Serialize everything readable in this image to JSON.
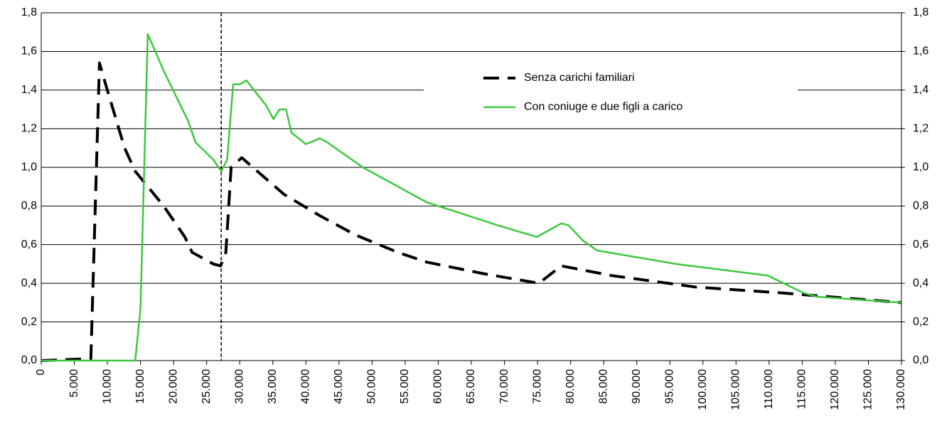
{
  "chart_data": {
    "type": "line",
    "x": null,
    "xlim": [
      0,
      130000
    ],
    "xticks": [
      {
        "value": 0,
        "label": "0"
      },
      {
        "value": 5000,
        "label": "5.000"
      },
      {
        "value": 10000,
        "label": "10.000"
      },
      {
        "value": 15000,
        "label": "15.000"
      },
      {
        "value": 20000,
        "label": "20.000"
      },
      {
        "value": 25000,
        "label": "25.000"
      },
      {
        "value": 30000,
        "label": "30.000"
      },
      {
        "value": 35000,
        "label": "35.000"
      },
      {
        "value": 40000,
        "label": "40.000"
      },
      {
        "value": 45000,
        "label": "45.000"
      },
      {
        "value": 50000,
        "label": "50.000"
      },
      {
        "value": 55000,
        "label": "55.000"
      },
      {
        "value": 60000,
        "label": "60.000"
      },
      {
        "value": 65000,
        "label": "65.000"
      },
      {
        "value": 70000,
        "label": "70.000"
      },
      {
        "value": 75000,
        "label": "75.000"
      },
      {
        "value": 80000,
        "label": "80.000"
      },
      {
        "value": 85000,
        "label": "85.000"
      },
      {
        "value": 90000,
        "label": "90.000"
      },
      {
        "value": 95000,
        "label": "95.000"
      },
      {
        "value": 100000,
        "label": "100.000"
      },
      {
        "value": 105000,
        "label": "105.000"
      },
      {
        "value": 110000,
        "label": "110.000"
      },
      {
        "value": 115000,
        "label": "115.000"
      },
      {
        "value": 120000,
        "label": "120.000"
      },
      {
        "value": 125000,
        "label": "125.000"
      },
      {
        "value": 130000,
        "label": "130.000"
      }
    ],
    "ylim": [
      0,
      1.8
    ],
    "yticks": [
      {
        "value": 0,
        "label": "0,0"
      },
      {
        "value": 0.2,
        "label": "0,2"
      },
      {
        "value": 0.4,
        "label": "0,4"
      },
      {
        "value": 0.6,
        "label": "0,6"
      },
      {
        "value": 0.8,
        "label": "0,8"
      },
      {
        "value": 1.0,
        "label": "1,0"
      },
      {
        "value": 1.2,
        "label": "1,2"
      },
      {
        "value": 1.4,
        "label": "1,4"
      },
      {
        "value": 1.6,
        "label": "1,6"
      },
      {
        "value": 1.8,
        "label": "1,8"
      }
    ],
    "y2lim": [
      0,
      1.8
    ],
    "y2ticks": [
      {
        "value": 0,
        "label": "0,0"
      },
      {
        "value": 0.2,
        "label": "0,2"
      },
      {
        "value": 0.4,
        "label": "0,4"
      },
      {
        "value": 0.6,
        "label": "0,6"
      },
      {
        "value": 0.8,
        "label": "0,8"
      },
      {
        "value": 1.0,
        "label": "1,0"
      },
      {
        "value": 1.2,
        "label": "1,2"
      },
      {
        "value": 1.4,
        "label": "1,4"
      },
      {
        "value": 1.6,
        "label": "1,6"
      },
      {
        "value": 1.8,
        "label": "1,8"
      }
    ],
    "grid": true,
    "reference_line_x": 27200,
    "series": [
      {
        "name": "Senza carichi familiari",
        "color": "#000000",
        "dash": true,
        "x": [
          0,
          7500,
          8800,
          9900,
          12600,
          14200,
          18500,
          21700,
          22800,
          26000,
          27100,
          27900,
          28700,
          30300,
          36700,
          42100,
          47500,
          53900,
          58200,
          66800,
          75200,
          78600,
          86200,
          99000,
          112000,
          130000
        ],
        "values": [
          0,
          0.01,
          1.54,
          1.41,
          1.1,
          0.98,
          0.8,
          0.64,
          0.56,
          0.5,
          0.49,
          0.56,
          1.0,
          1.05,
          0.86,
          0.75,
          0.65,
          0.56,
          0.51,
          0.45,
          0.4,
          0.49,
          0.44,
          0.38,
          0.35,
          0.3
        ]
      },
      {
        "name": "Con coniuge e due figli a carico",
        "color": "#3cc83c",
        "dash": false,
        "x": [
          0,
          14200,
          15000,
          16100,
          18500,
          22200,
          23300,
          26000,
          27200,
          28100,
          29000,
          30000,
          31000,
          34000,
          35100,
          36000,
          37000,
          37800,
          40000,
          42100,
          43200,
          48600,
          55000,
          58200,
          69000,
          74900,
          78600,
          79700,
          81900,
          84000,
          95900,
          109800,
          115200,
          117300,
          130000
        ],
        "values": [
          0,
          0,
          0.27,
          1.69,
          1.5,
          1.24,
          1.13,
          1.04,
          0.98,
          1.04,
          1.43,
          1.43,
          1.45,
          1.32,
          1.25,
          1.3,
          1.3,
          1.18,
          1.12,
          1.15,
          1.13,
          1.0,
          0.88,
          0.82,
          0.7,
          0.64,
          0.71,
          0.7,
          0.62,
          0.57,
          0.5,
          0.44,
          0.35,
          0.33,
          0.3
        ]
      }
    ]
  }
}
